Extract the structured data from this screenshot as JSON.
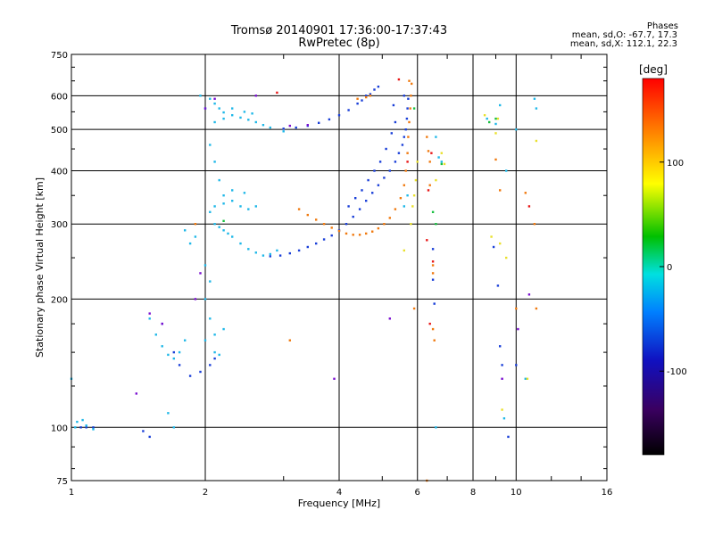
{
  "header": {
    "title": "Tromsø 20140901 17:36:00-17:37:43",
    "subtitle": "RwPretec (8p)"
  },
  "phases_box": {
    "heading": "Phases",
    "line_o": "mean, sd,O: -67.7, 17.3",
    "line_x": "mean, sd,X: 112.1, 22.3"
  },
  "chart_data": {
    "type": "scatter",
    "xlabel": "Frequency [MHz]",
    "ylabel": "Stationary phase Virtual Height [km]",
    "x_scale": "log",
    "y_scale": "log",
    "xlim": [
      1,
      16
    ],
    "ylim": [
      75,
      750
    ],
    "x_ticks": [
      1,
      2,
      4,
      6,
      8,
      10,
      16
    ],
    "y_ticks": [
      75,
      100,
      200,
      300,
      400,
      500,
      600,
      750
    ],
    "grid": true,
    "colorbar": {
      "label": "[deg]",
      "range": [
        -180,
        180
      ],
      "ticks": [
        100,
        0,
        -100
      ],
      "colors": [
        "#000000",
        "#3a0060",
        "#1010c0",
        "#0080ff",
        "#00e0e0",
        "#00c000",
        "#ffff00",
        "#ff8000",
        "#ff0000"
      ]
    },
    "series": [
      {
        "color": "#1a3fd8",
        "points": [
          [
            2.8,
            252
          ],
          [
            2.95,
            253
          ],
          [
            3.1,
            256
          ],
          [
            3.25,
            260
          ],
          [
            3.4,
            265
          ],
          [
            3.55,
            270
          ],
          [
            3.7,
            276
          ],
          [
            3.85,
            282
          ],
          [
            4.0,
            290
          ],
          [
            4.15,
            300
          ],
          [
            4.3,
            312
          ],
          [
            4.45,
            325
          ],
          [
            4.6,
            340
          ],
          [
            4.75,
            355
          ],
          [
            4.9,
            370
          ],
          [
            5.05,
            385
          ],
          [
            5.2,
            400
          ],
          [
            5.35,
            420
          ],
          [
            5.45,
            440
          ],
          [
            5.55,
            460
          ],
          [
            5.6,
            480
          ],
          [
            5.65,
            500
          ],
          [
            5.68,
            530
          ],
          [
            5.7,
            560
          ],
          [
            5.72,
            590
          ],
          [
            5.6,
            600
          ],
          [
            5.3,
            570
          ],
          [
            3.0,
            502
          ],
          [
            3.2,
            505
          ],
          [
            3.4,
            510
          ],
          [
            3.6,
            518
          ],
          [
            3.8,
            528
          ],
          [
            4.0,
            540
          ],
          [
            4.2,
            555
          ],
          [
            4.4,
            575
          ],
          [
            4.6,
            600
          ],
          [
            4.8,
            620
          ],
          [
            4.9,
            630
          ],
          [
            4.7,
            605
          ],
          [
            4.5,
            585
          ],
          [
            2.1,
            145
          ],
          [
            2.05,
            140
          ],
          [
            1.95,
            135
          ],
          [
            1.85,
            132
          ],
          [
            1.75,
            140
          ],
          [
            1.7,
            150
          ],
          [
            1.6,
            175
          ],
          [
            1.5,
            95
          ],
          [
            1.45,
            98
          ],
          [
            1.05,
            100
          ],
          [
            1.08,
            100
          ],
          [
            1.12,
            100
          ],
          [
            4.2,
            330
          ],
          [
            4.35,
            345
          ],
          [
            4.5,
            360
          ],
          [
            4.65,
            380
          ],
          [
            4.8,
            400
          ],
          [
            4.95,
            420
          ],
          [
            5.1,
            450
          ],
          [
            5.25,
            490
          ],
          [
            5.35,
            520
          ],
          [
            6.5,
            262
          ],
          [
            6.5,
            222
          ],
          [
            6.55,
            195
          ],
          [
            9.2,
            155
          ],
          [
            9.3,
            140
          ],
          [
            9.6,
            95
          ],
          [
            10.0,
            140
          ],
          [
            8.9,
            265
          ],
          [
            9.1,
            215
          ]
        ]
      },
      {
        "color": "#20b8e8",
        "points": [
          [
            1.95,
            600
          ],
          [
            2.05,
            590
          ],
          [
            2.1,
            575
          ],
          [
            2.15,
            560
          ],
          [
            2.2,
            548
          ],
          [
            2.3,
            540
          ],
          [
            2.4,
            533
          ],
          [
            2.5,
            527
          ],
          [
            2.6,
            520
          ],
          [
            2.7,
            512
          ],
          [
            2.8,
            505
          ],
          [
            2.1,
            520
          ],
          [
            2.2,
            530
          ],
          [
            2.0,
            560
          ],
          [
            2.3,
            560
          ],
          [
            2.45,
            550
          ],
          [
            2.55,
            545
          ],
          [
            2.1,
            300
          ],
          [
            2.15,
            295
          ],
          [
            2.2,
            290
          ],
          [
            2.25,
            285
          ],
          [
            2.3,
            280
          ],
          [
            2.4,
            270
          ],
          [
            2.5,
            262
          ],
          [
            2.6,
            257
          ],
          [
            2.7,
            253
          ],
          [
            2.05,
            320
          ],
          [
            2.1,
            330
          ],
          [
            2.2,
            335
          ],
          [
            2.3,
            340
          ],
          [
            2.4,
            330
          ],
          [
            2.5,
            325
          ],
          [
            2.6,
            330
          ],
          [
            2.2,
            350
          ],
          [
            2.3,
            360
          ],
          [
            2.45,
            355
          ],
          [
            2.0,
            240
          ],
          [
            2.05,
            220
          ],
          [
            2.0,
            200
          ],
          [
            2.05,
            180
          ],
          [
            2.1,
            165
          ],
          [
            2.0,
            160
          ],
          [
            2.1,
            150
          ],
          [
            2.15,
            148
          ],
          [
            2.2,
            170
          ],
          [
            1.8,
            160
          ],
          [
            1.75,
            150
          ],
          [
            1.7,
            145
          ],
          [
            1.65,
            148
          ],
          [
            1.6,
            155
          ],
          [
            1.55,
            165
          ],
          [
            1.5,
            180
          ],
          [
            1.85,
            270
          ],
          [
            1.9,
            280
          ],
          [
            1.8,
            290
          ],
          [
            1.0,
            130
          ],
          [
            1.02,
            100
          ],
          [
            1.03,
            103
          ],
          [
            1.06,
            104
          ],
          [
            1.08,
            101
          ],
          [
            1.12,
            99
          ],
          [
            2.05,
            460
          ],
          [
            2.1,
            420
          ],
          [
            2.15,
            380
          ],
          [
            1.65,
            108
          ],
          [
            1.7,
            100
          ],
          [
            2.8,
            255
          ],
          [
            2.9,
            260
          ],
          [
            3.0,
            495
          ],
          [
            5.6,
            330
          ],
          [
            5.7,
            350
          ],
          [
            6.7,
            430
          ],
          [
            6.8,
            420
          ],
          [
            6.6,
            480
          ],
          [
            8.6,
            530
          ],
          [
            9.2,
            570
          ],
          [
            9.0,
            515
          ],
          [
            10.0,
            500
          ],
          [
            11.0,
            590
          ],
          [
            11.1,
            560
          ],
          [
            9.5,
            400
          ],
          [
            10.5,
            130
          ],
          [
            9.4,
            105
          ],
          [
            6.6,
            100
          ]
        ]
      },
      {
        "color": "#f07a10",
        "points": [
          [
            3.25,
            325
          ],
          [
            3.4,
            315
          ],
          [
            3.55,
            307
          ],
          [
            3.7,
            300
          ],
          [
            3.85,
            294
          ],
          [
            4.0,
            289
          ],
          [
            4.15,
            285
          ],
          [
            4.3,
            283
          ],
          [
            4.45,
            283
          ],
          [
            4.6,
            285
          ],
          [
            4.75,
            288
          ],
          [
            4.9,
            293
          ],
          [
            5.05,
            300
          ],
          [
            5.2,
            310
          ],
          [
            5.35,
            325
          ],
          [
            5.5,
            345
          ],
          [
            5.6,
            370
          ],
          [
            5.65,
            400
          ],
          [
            5.7,
            440
          ],
          [
            5.72,
            480
          ],
          [
            5.75,
            520
          ],
          [
            5.78,
            560
          ],
          [
            5.8,
            600
          ],
          [
            5.82,
            640
          ],
          [
            5.75,
            650
          ],
          [
            4.6,
            595
          ],
          [
            4.7,
            600
          ],
          [
            4.4,
            590
          ],
          [
            6.3,
            480
          ],
          [
            6.35,
            445
          ],
          [
            6.4,
            420
          ],
          [
            6.5,
            240
          ],
          [
            6.5,
            230
          ],
          [
            6.5,
            170
          ],
          [
            6.55,
            160
          ],
          [
            6.4,
            370
          ],
          [
            5.9,
            190
          ],
          [
            6.3,
            75
          ],
          [
            9.0,
            425
          ],
          [
            9.2,
            360
          ],
          [
            10.0,
            190
          ],
          [
            10.5,
            355
          ],
          [
            11.0,
            300
          ],
          [
            11.1,
            190
          ],
          [
            3.1,
            160
          ],
          [
            1.9,
            300
          ]
        ]
      },
      {
        "color": "#e9e02c",
        "points": [
          [
            5.9,
            350
          ],
          [
            5.95,
            380
          ],
          [
            6.0,
            420
          ],
          [
            5.8,
            300
          ],
          [
            5.85,
            330
          ],
          [
            6.8,
            440
          ],
          [
            6.9,
            415
          ],
          [
            8.5,
            540
          ],
          [
            9.0,
            490
          ],
          [
            9.1,
            530
          ],
          [
            9.2,
            270
          ],
          [
            8.8,
            280
          ],
          [
            9.5,
            250
          ],
          [
            9.3,
            110
          ],
          [
            10.6,
            130
          ],
          [
            11.1,
            470
          ],
          [
            6.6,
            380
          ],
          [
            5.6,
            260
          ]
        ]
      },
      {
        "color": "#7a0fd0",
        "points": [
          [
            3.1,
            510
          ],
          [
            3.4,
            512
          ],
          [
            2.6,
            600
          ],
          [
            2.1,
            590
          ],
          [
            2.0,
            560
          ],
          [
            9.3,
            130
          ],
          [
            10.1,
            170
          ],
          [
            10.7,
            205
          ],
          [
            1.5,
            185
          ],
          [
            1.6,
            175
          ],
          [
            1.9,
            200
          ],
          [
            1.95,
            230
          ],
          [
            1.4,
            120
          ],
          [
            5.2,
            180
          ],
          [
            3.9,
            130
          ]
        ]
      },
      {
        "color": "#e81818",
        "points": [
          [
            6.4,
            175
          ],
          [
            6.5,
            245
          ],
          [
            6.45,
            440
          ],
          [
            6.35,
            360
          ],
          [
            6.3,
            275
          ],
          [
            10.7,
            330
          ],
          [
            5.7,
            420
          ],
          [
            5.45,
            655
          ],
          [
            2.9,
            610
          ]
        ]
      },
      {
        "color": "#18c040",
        "points": [
          [
            6.8,
            415
          ],
          [
            6.5,
            320
          ],
          [
            6.6,
            300
          ],
          [
            8.7,
            520
          ],
          [
            9.0,
            530
          ],
          [
            5.9,
            560
          ],
          [
            2.2,
            305
          ]
        ]
      }
    ]
  }
}
